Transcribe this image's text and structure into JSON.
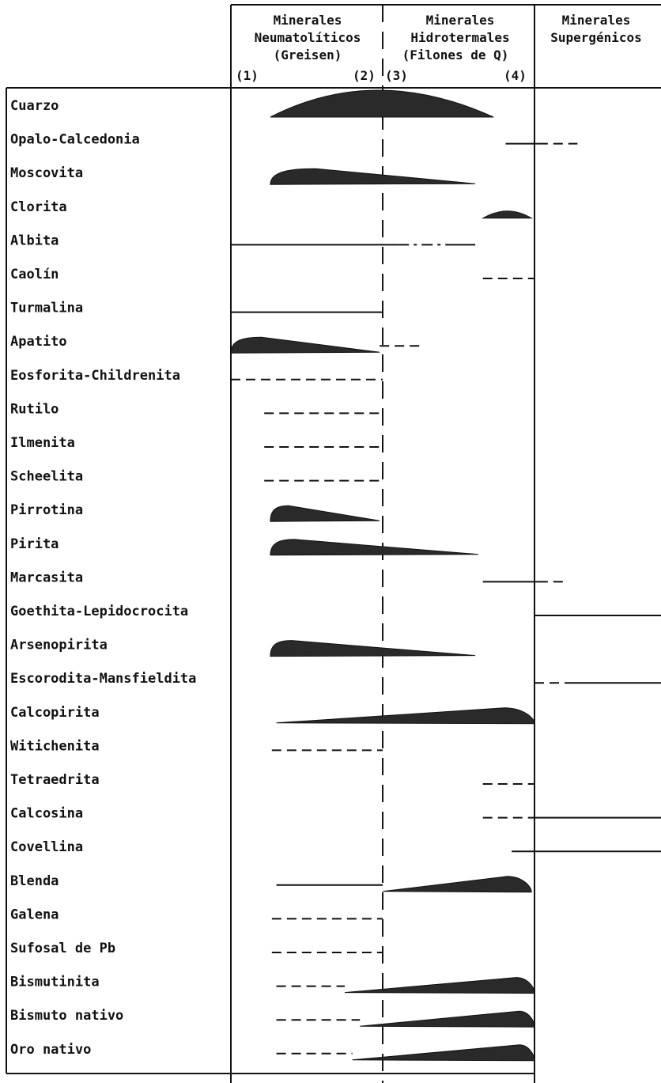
{
  "columns": [
    {
      "lines": [
        "Minerales",
        "Neumatolíticos",
        "(Greisen)"
      ]
    },
    {
      "lines": [
        "Minerales",
        "Hidrotermales",
        "(Filones de Q)"
      ]
    },
    {
      "lines": [
        "Minerales",
        "Supergénicos"
      ]
    }
  ],
  "stage_markers": [
    "(1)",
    "(2)",
    "(3)",
    "(4)"
  ],
  "chart_data": {
    "type": "paragenetic-sequence",
    "stage_columns": [
      "Minerales Neumatolíticos (Greisen)",
      "Minerales Hidrotermales (Filones de Q)",
      "Minerales Supergénicos"
    ],
    "stage_markers": [
      "(1)",
      "(2)",
      "(3)",
      "(4)"
    ],
    "scale_note": "positions in stage units: 0=(1), 1=(2)/(3) boundary, 2=(4), 3=end of supergene",
    "minerals": [
      {
        "name": "Cuarzo",
        "segments": [
          {
            "style": "lens",
            "from": 0.26,
            "to": 1.73,
            "peak": 0.95
          }
        ]
      },
      {
        "name": "Opalo-Calcedonia",
        "segments": [
          {
            "style": "solid",
            "from": 1.81,
            "to": 2.03
          },
          {
            "style": "dashed",
            "from": 2.03,
            "to": 2.34
          }
        ]
      },
      {
        "name": "Moscovita",
        "segments": [
          {
            "style": "wedge",
            "from": 0.26,
            "to": 1.61,
            "peak": 0.56
          }
        ]
      },
      {
        "name": "Clorita",
        "segments": [
          {
            "style": "lens",
            "from": 1.66,
            "to": 1.98,
            "peak": 1.82
          }
        ]
      },
      {
        "name": "Albita",
        "segments": [
          {
            "style": "solid",
            "from": 0.0,
            "to": 1.1
          },
          {
            "style": "dashdot",
            "from": 1.1,
            "to": 1.44
          },
          {
            "style": "solid",
            "from": 1.44,
            "to": 1.61
          }
        ]
      },
      {
        "name": "Caolín",
        "segments": [
          {
            "style": "dashed",
            "from": 1.66,
            "to": 2.0
          }
        ]
      },
      {
        "name": "Turmalina",
        "segments": [
          {
            "style": "solid",
            "from": 0.0,
            "to": 1.0
          }
        ]
      },
      {
        "name": "Apatito",
        "segments": [
          {
            "style": "wedge",
            "from": 0.0,
            "to": 0.98,
            "peak": 0.2
          },
          {
            "style": "dashed",
            "from": 0.98,
            "to": 1.26
          }
        ]
      },
      {
        "name": "Eosforita-Childrenita",
        "segments": [
          {
            "style": "dashed",
            "from": 0.0,
            "to": 1.0
          }
        ]
      },
      {
        "name": "Rutilo",
        "segments": [
          {
            "style": "dashed",
            "from": 0.22,
            "to": 1.0
          }
        ]
      },
      {
        "name": "Ilmenita",
        "segments": [
          {
            "style": "dashed",
            "from": 0.22,
            "to": 1.0
          }
        ]
      },
      {
        "name": "Scheelita",
        "segments": [
          {
            "style": "dashed",
            "from": 0.22,
            "to": 1.0
          }
        ]
      },
      {
        "name": "Pirrotina",
        "segments": [
          {
            "style": "wedge",
            "from": 0.26,
            "to": 0.98,
            "peak": 0.38
          }
        ]
      },
      {
        "name": "Pirita",
        "segments": [
          {
            "style": "wedge",
            "from": 0.26,
            "to": 1.63,
            "peak": 0.42
          }
        ]
      },
      {
        "name": "Marcasita",
        "segments": [
          {
            "style": "solid",
            "from": 1.66,
            "to": 2.03
          },
          {
            "style": "dashed",
            "from": 2.03,
            "to": 2.24
          }
        ]
      },
      {
        "name": "Goethita-Lepidocrocita",
        "segments": [
          {
            "style": "solid",
            "from": 2.0,
            "to": 3.0
          }
        ]
      },
      {
        "name": "Arsenopirita",
        "segments": [
          {
            "style": "wedge",
            "from": 0.26,
            "to": 1.61,
            "peak": 0.4
          }
        ]
      },
      {
        "name": "Escorodita-Mansfieldita",
        "segments": [
          {
            "style": "dashed",
            "from": 2.0,
            "to": 2.3
          },
          {
            "style": "solid",
            "from": 2.3,
            "to": 3.0
          }
        ]
      },
      {
        "name": "Calcopirita",
        "segments": [
          {
            "style": "wedge-rev",
            "from": 0.3,
            "to": 2.0,
            "peak": 1.8
          }
        ]
      },
      {
        "name": "Witichenita",
        "segments": [
          {
            "style": "dashed",
            "from": 0.27,
            "to": 1.0
          }
        ]
      },
      {
        "name": "Tetraedrita",
        "segments": [
          {
            "style": "dashed",
            "from": 1.66,
            "to": 2.0
          }
        ]
      },
      {
        "name": "Calcosina",
        "segments": [
          {
            "style": "dashed",
            "from": 1.66,
            "to": 2.0
          },
          {
            "style": "solid",
            "from": 2.0,
            "to": 3.0
          }
        ]
      },
      {
        "name": "Covellina",
        "segments": [
          {
            "style": "solid",
            "from": 1.85,
            "to": 3.0
          }
        ]
      },
      {
        "name": "Blenda",
        "segments": [
          {
            "style": "solid",
            "from": 0.3,
            "to": 1.0
          },
          {
            "style": "wedge-rev",
            "from": 1.0,
            "to": 1.98,
            "peak": 1.82
          }
        ]
      },
      {
        "name": "Galena",
        "segments": [
          {
            "style": "dashed",
            "from": 0.27,
            "to": 1.0
          }
        ]
      },
      {
        "name": "Sufosal de Pb",
        "segments": [
          {
            "style": "dashed",
            "from": 0.27,
            "to": 1.0
          }
        ]
      },
      {
        "name": "Bismutinita",
        "segments": [
          {
            "style": "dashed",
            "from": 0.3,
            "to": 0.75
          },
          {
            "style": "wedge-rev",
            "from": 0.75,
            "to": 2.0,
            "peak": 1.88
          }
        ]
      },
      {
        "name": "Bismuto nativo",
        "segments": [
          {
            "style": "dashed",
            "from": 0.3,
            "to": 0.85
          },
          {
            "style": "wedge-rev",
            "from": 0.85,
            "to": 2.0,
            "peak": 1.9
          }
        ]
      },
      {
        "name": "Oro nativo",
        "segments": [
          {
            "style": "dashed",
            "from": 0.3,
            "to": 0.8
          },
          {
            "style": "wedge-rev",
            "from": 0.8,
            "to": 2.0,
            "peak": 1.9
          }
        ]
      }
    ]
  }
}
